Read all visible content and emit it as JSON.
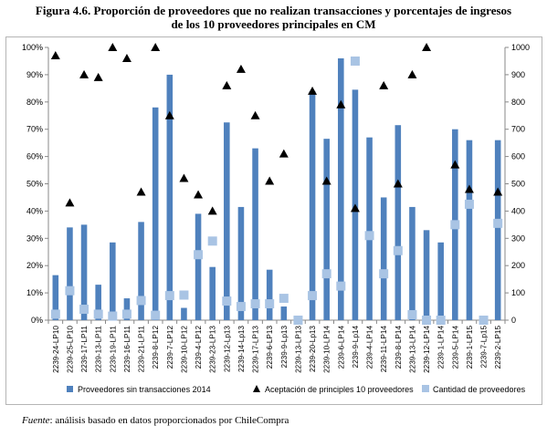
{
  "title_line1": "Figura 4.6. Proporción de proveedores que no realizan transacciones y porcentajes de ingresos",
  "title_line2": "de los 10 proveedores principales en CM",
  "source_label": "Fuente",
  "source_text": ": análisis basado en datos proporcionados por ChileCompra",
  "chart_data": {
    "type": "bar",
    "categories": [
      "2239-24-LP10",
      "2239-25-LP10",
      "2239-17-LP11",
      "2239-13-LP11",
      "2239-19-LP11",
      "2239-16-LP11",
      "2239-21-LP11",
      "2239-8-LP12",
      "2239-7-LP12",
      "2239-10-LP12",
      "2239-4-LP12",
      "2239-23-LP13",
      "2239-12-Lp13",
      "2239-14-Lp13",
      "2239-17-LP13",
      "2239-6-LP13",
      "2239-9-Lp13",
      "2239-13-LP13",
      "2239-20-Lp13",
      "2239-10-LP14",
      "2239-6-LP14",
      "2239-9-Lp14",
      "2239-4-LP14",
      "2239-11-LP14",
      "2239-8-LP14",
      "2239-13-LP14",
      "2239-12-LP14",
      "2239-1-LP14",
      "2239-5-LP14",
      "2239-1-LP15",
      "2239-7-Lp15",
      "2239-2-LP15"
    ],
    "series": [
      {
        "name": "Proveedores sin transacciones 2014",
        "type": "bar",
        "axis": "left",
        "color": "#4f81bd",
        "values": [
          16.5,
          34,
          35,
          13,
          28.5,
          8,
          36,
          78,
          90,
          4.5,
          39,
          19.5,
          72.5,
          41.5,
          63,
          18.5,
          5,
          0,
          84,
          66.5,
          96,
          84.5,
          67,
          45,
          71.5,
          41.5,
          33,
          28.5,
          70,
          66,
          0,
          66
        ]
      },
      {
        "name": "Aceptación de principles 10 proveedores",
        "type": "scatter",
        "marker": "triangle",
        "axis": "left",
        "color": "#000000",
        "values": [
          97,
          43,
          90,
          89,
          100,
          96,
          47,
          100,
          75,
          52,
          46,
          40,
          86,
          92,
          75,
          51,
          61,
          null,
          84,
          51,
          79,
          41,
          null,
          86,
          50,
          90,
          100,
          null,
          57,
          48,
          null,
          47
        ]
      },
      {
        "name": "Cantidad de proveedores",
        "type": "scatter",
        "marker": "square",
        "axis": "right",
        "color": "#a9c4e4",
        "values": [
          22,
          108,
          40,
          22,
          15,
          22,
          72,
          18,
          90,
          92,
          240,
          290,
          70,
          50,
          60,
          60,
          80,
          0,
          90,
          170,
          125,
          950,
          310,
          170,
          255,
          20,
          0,
          0,
          350,
          425,
          0,
          355
        ]
      }
    ],
    "yaxis_left": {
      "min": 0,
      "max": 100,
      "ticks": [
        "0%",
        "10%",
        "20%",
        "30%",
        "40%",
        "50%",
        "60%",
        "70%",
        "80%",
        "90%",
        "100%"
      ]
    },
    "yaxis_right": {
      "min": 0,
      "max": 1000,
      "ticks": [
        "0",
        "100",
        "200",
        "300",
        "400",
        "500",
        "600",
        "700",
        "800",
        "900",
        "1000"
      ]
    },
    "grid": false,
    "legend_position": "bottom"
  }
}
